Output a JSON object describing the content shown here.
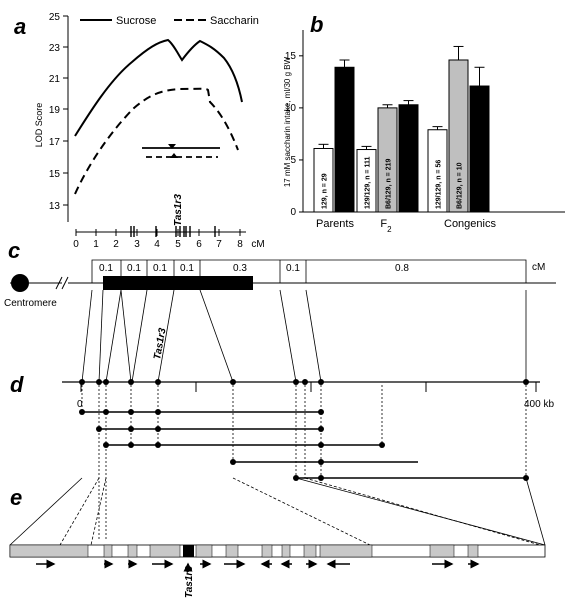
{
  "panels": {
    "a": "a",
    "b": "b",
    "c": "c",
    "d": "d",
    "e": "e"
  },
  "panel_a": {
    "ylabel": "LOD Score",
    "yticks": [
      "13",
      "15",
      "17",
      "19",
      "21",
      "23",
      "25"
    ],
    "legend": {
      "sucrose": "Sucrose",
      "saccharin": "Saccharin"
    },
    "gene_label": "Tas1r3",
    "xunit": "cM",
    "xticks": [
      "0",
      "1",
      "2",
      "3",
      "4",
      "5",
      "6",
      "7",
      "8"
    ]
  },
  "chart_data": {
    "type": "bar",
    "ylabel": "17 mM saccharin intake, ml/30 g BW",
    "ylim": [
      0,
      17
    ],
    "yticks": [
      "0",
      "5",
      "10",
      "15"
    ],
    "groups": [
      "Parents",
      "F",
      "Congenics"
    ],
    "group_sub": "2",
    "bars": [
      {
        "group": "Parents",
        "label": "129, n = 29",
        "value": 6.1,
        "error": 0.4,
        "color": "#ffffff"
      },
      {
        "group": "Parents",
        "label": "B6, n = 19",
        "value": 13.9,
        "error": 0.7,
        "color": "#000000"
      },
      {
        "group": "F",
        "label": "129/129, n = 111",
        "value": 6.0,
        "error": 0.3,
        "color": "#ffffff"
      },
      {
        "group": "F",
        "label": "B6/129, n = 219",
        "value": 10.0,
        "error": 0.3,
        "color": "#bfbfbf"
      },
      {
        "group": "F",
        "label": "B6/B6, n = 123",
        "value": 10.3,
        "error": 0.4,
        "color": "#000000"
      },
      {
        "group": "Congenics",
        "label": "129/129, n = 56",
        "value": 7.9,
        "error": 0.3,
        "color": "#ffffff"
      },
      {
        "group": "Congenics",
        "label": "B6/129, n = 10",
        "value": 14.6,
        "error": 1.3,
        "color": "#bfbfbf"
      },
      {
        "group": "Congenics",
        "label": "B6/B6, n = 6",
        "value": 12.1,
        "error": 1.8,
        "color": "#000000"
      }
    ]
  },
  "panel_c": {
    "centromere": "Centromere",
    "unit": "cM",
    "intervals": [
      "0.1",
      "0.1",
      "0.1",
      "0.1",
      "0.3",
      "0.1",
      "0.8"
    ],
    "gene_label": "Tas1r3"
  },
  "panel_d": {
    "start_label": "0",
    "end_label": "400 kb"
  },
  "panel_e": {
    "gene_label": "Tas1r3"
  }
}
